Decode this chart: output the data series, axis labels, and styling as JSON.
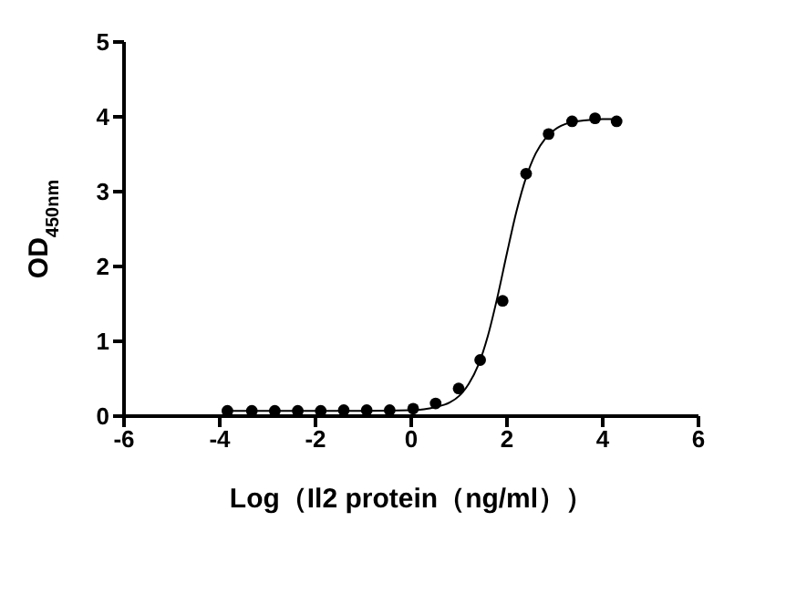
{
  "chart_data": {
    "type": "scatter",
    "xlabel": "Log（Il2 protein（ng/ml））",
    "ylabel": "OD$_{450nm}$",
    "xlim": [
      -6,
      6
    ],
    "xticks": [
      -6,
      -4,
      -2,
      0,
      2,
      4,
      6
    ],
    "ylim": [
      0,
      5
    ],
    "yticks": [
      0,
      1,
      2,
      3,
      4,
      5
    ],
    "grid": false,
    "marker": "circle",
    "series": [
      {
        "color": "#000000",
        "x": [
          -3.84,
          -3.33,
          -2.85,
          -2.37,
          -1.89,
          -1.41,
          -0.93,
          -0.45,
          0.04,
          0.51,
          0.99,
          1.44,
          1.91,
          2.4,
          2.87,
          3.36,
          3.84,
          4.29
        ],
        "values": [
          0.07,
          0.07,
          0.07,
          0.07,
          0.07,
          0.08,
          0.08,
          0.08,
          0.1,
          0.17,
          0.37,
          0.75,
          1.54,
          3.24,
          3.77,
          3.94,
          3.98,
          3.94
        ]
      },
      {
        "type": "line",
        "color": "#000000",
        "marker": "none",
        "x": [
          -3.86,
          -1,
          0,
          0.5,
          0.8,
          1.0,
          1.2,
          1.4,
          1.6,
          1.8,
          2.0,
          2.2,
          2.4,
          2.6,
          2.8,
          3.0,
          3.3,
          3.6,
          4.0,
          4.29
        ],
        "values": [
          0.07,
          0.07,
          0.08,
          0.12,
          0.18,
          0.27,
          0.43,
          0.68,
          1.07,
          1.59,
          2.18,
          2.74,
          3.19,
          3.51,
          3.71,
          3.83,
          3.92,
          3.95,
          3.97,
          3.97
        ]
      }
    ]
  }
}
